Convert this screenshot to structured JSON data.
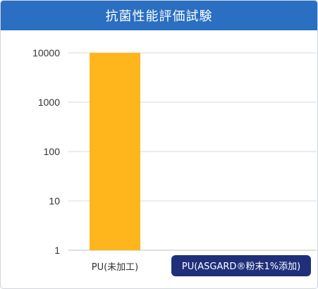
{
  "colors": {
    "header_bg": "#2a6fc1",
    "bar_untreated": "#ffb61d",
    "badge_bg": "#1f2f7a",
    "grid": "#d9d9d9"
  },
  "chart_data": {
    "type": "bar",
    "title": "抗菌性能評価試験",
    "scale": "log",
    "ylim": [
      1,
      10000
    ],
    "yticks": [
      "1",
      "10",
      "100",
      "1000",
      "10000"
    ],
    "categories": [
      "PU(未加工)",
      "PU(ASGARD®粉末1%添加)"
    ],
    "values": [
      10000,
      1
    ],
    "grid": true,
    "legend": "none",
    "highlight_category": "PU(ASGARD®粉末1%添加)"
  }
}
